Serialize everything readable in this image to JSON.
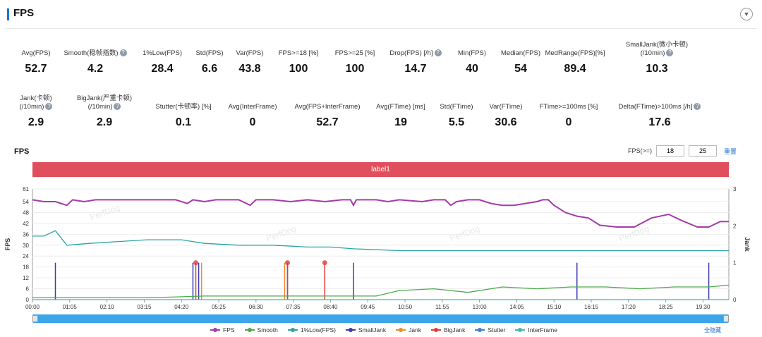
{
  "header": {
    "title": "FPS",
    "collapse_glyph": "▼"
  },
  "stats_row1": [
    {
      "label": "Avg(FPS)",
      "value": "52.7",
      "help": false
    },
    {
      "label": "Smooth(稳帧指数)",
      "value": "4.2",
      "help": true
    },
    {
      "label": "1%Low(FPS)",
      "value": "28.4",
      "help": false
    },
    {
      "label": "Std(FPS)",
      "value": "6.6",
      "help": false
    },
    {
      "label": "Var(FPS)",
      "value": "43.8",
      "help": false
    },
    {
      "label": "FPS>=18 [%]",
      "value": "100",
      "help": false
    },
    {
      "label": "FPS>=25 [%]",
      "value": "100",
      "help": false
    },
    {
      "label": "Drop(FPS) [/h]",
      "value": "14.7",
      "help": true
    },
    {
      "label": "Min(FPS)",
      "value": "40",
      "help": false
    },
    {
      "label": "Median(FPS)",
      "value": "54",
      "help": false
    },
    {
      "label": "MedRange(FPS)[%]",
      "value": "89.4",
      "help": false
    },
    {
      "label": "SmallJank(微小卡顿)",
      "label2": "(/10min)",
      "value": "10.3",
      "help": true
    }
  ],
  "stats_row2": [
    {
      "label": "Jank(卡顿)",
      "label2": "(/10min)",
      "value": "2.9",
      "help": true
    },
    {
      "label": "BigJank(严重卡顿)",
      "label2": "(/10min)",
      "value": "2.9",
      "help": true
    },
    {
      "label": "Stutter(卡顿率) [%]",
      "value": "0.1",
      "help": false
    },
    {
      "label": "Avg(InterFrame)",
      "value": "0",
      "help": false
    },
    {
      "label": "Avg(FPS+InterFrame)",
      "value": "52.7",
      "help": false
    },
    {
      "label": "Avg(FTime) [ms]",
      "value": "19",
      "help": false
    },
    {
      "label": "Std(FTime)",
      "value": "5.5",
      "help": false
    },
    {
      "label": "Var(FTime)",
      "value": "30.6",
      "help": false
    },
    {
      "label": "FTime>=100ms [%]",
      "value": "0",
      "help": false
    },
    {
      "label": "Delta(FTime)>100ms [/h]",
      "value": "17.6",
      "help": true
    }
  ],
  "chart": {
    "title": "FPS",
    "filter_label": "FPS(>=)",
    "filter_low": "18",
    "filter_high": "25",
    "filter_link": "重置",
    "label_band": "label1",
    "reset_link": "全隐藏"
  },
  "chart_data": {
    "type": "line",
    "ylabel": "FPS",
    "y2label": "Jank",
    "y_ticks": [
      "0",
      "6",
      "12",
      "18",
      "24",
      "30",
      "36",
      "42",
      "48",
      "54",
      "61"
    ],
    "y_range": [
      0,
      61
    ],
    "y2_ticks": [
      "0",
      "1",
      "2",
      "3"
    ],
    "y2_range": [
      0,
      3
    ],
    "x_ticks": [
      "00:00",
      "01:05",
      "02:10",
      "03:15",
      "04:20",
      "05:25",
      "06:30",
      "07:35",
      "08:40",
      "09:45",
      "10:50",
      "11:55",
      "13:00",
      "14:05",
      "15:10",
      "16:15",
      "17:20",
      "18:25",
      "19:30"
    ],
    "x_range_seconds": [
      0,
      1215
    ],
    "series": [
      {
        "name": "FPS",
        "color": "#a63ba8",
        "axis": "left",
        "points": [
          [
            0,
            55
          ],
          [
            20,
            54
          ],
          [
            40,
            54
          ],
          [
            60,
            52
          ],
          [
            70,
            55
          ],
          [
            90,
            54
          ],
          [
            110,
            55
          ],
          [
            150,
            55
          ],
          [
            200,
            55
          ],
          [
            250,
            55
          ],
          [
            270,
            53
          ],
          [
            280,
            55
          ],
          [
            300,
            54
          ],
          [
            320,
            55
          ],
          [
            360,
            55
          ],
          [
            380,
            52
          ],
          [
            390,
            55
          ],
          [
            420,
            55
          ],
          [
            450,
            54
          ],
          [
            480,
            55
          ],
          [
            510,
            54
          ],
          [
            540,
            55
          ],
          [
            555,
            55
          ],
          [
            560,
            52
          ],
          [
            565,
            55
          ],
          [
            600,
            55
          ],
          [
            620,
            54
          ],
          [
            640,
            55
          ],
          [
            680,
            54
          ],
          [
            700,
            55
          ],
          [
            720,
            55
          ],
          [
            730,
            52
          ],
          [
            740,
            54
          ],
          [
            760,
            55
          ],
          [
            780,
            55
          ],
          [
            800,
            53
          ],
          [
            820,
            52
          ],
          [
            840,
            52
          ],
          [
            860,
            53
          ],
          [
            880,
            54
          ],
          [
            890,
            55
          ],
          [
            900,
            55
          ],
          [
            910,
            52
          ],
          [
            930,
            48
          ],
          [
            950,
            46
          ],
          [
            970,
            45
          ],
          [
            990,
            41
          ],
          [
            1020,
            40
          ],
          [
            1050,
            40
          ],
          [
            1080,
            45
          ],
          [
            1110,
            47
          ],
          [
            1130,
            44
          ],
          [
            1160,
            40
          ],
          [
            1180,
            40
          ],
          [
            1200,
            43
          ],
          [
            1215,
            43
          ]
        ]
      },
      {
        "name": "Smooth",
        "color": "#4bab4b",
        "axis": "left",
        "points": [
          [
            0,
            1
          ],
          [
            100,
            1
          ],
          [
            200,
            1
          ],
          [
            300,
            2
          ],
          [
            400,
            2
          ],
          [
            500,
            2
          ],
          [
            600,
            2
          ],
          [
            640,
            5
          ],
          [
            700,
            6
          ],
          [
            760,
            4
          ],
          [
            820,
            7
          ],
          [
            880,
            6
          ],
          [
            940,
            7
          ],
          [
            1000,
            7
          ],
          [
            1060,
            6
          ],
          [
            1120,
            7
          ],
          [
            1180,
            7
          ],
          [
            1215,
            8
          ]
        ]
      },
      {
        "name": "1%Low(FPS)",
        "color": "#2ca4a4",
        "axis": "left",
        "points": [
          [
            0,
            35
          ],
          [
            10,
            35
          ],
          [
            20,
            35
          ],
          [
            40,
            38
          ],
          [
            60,
            30
          ],
          [
            100,
            31
          ],
          [
            150,
            32
          ],
          [
            200,
            33
          ],
          [
            260,
            33
          ],
          [
            300,
            31
          ],
          [
            360,
            30
          ],
          [
            420,
            30
          ],
          [
            480,
            29
          ],
          [
            520,
            29
          ],
          [
            560,
            28
          ],
          [
            640,
            27
          ],
          [
            720,
            27
          ],
          [
            800,
            27
          ],
          [
            900,
            27
          ],
          [
            1000,
            27
          ],
          [
            1100,
            27
          ],
          [
            1215,
            27
          ]
        ]
      },
      {
        "name": "InterFrame",
        "color": "#3cb8b8",
        "axis": "left",
        "points": [
          [
            0,
            0
          ],
          [
            1215,
            0
          ]
        ]
      }
    ],
    "spikes": [
      {
        "name": "SmallJank",
        "color": "#3b3bb0",
        "axis": "right",
        "x": [
          40,
          280,
          290,
          445,
          560,
          950,
          1180
        ],
        "value": 1
      },
      {
        "name": "Jank",
        "color": "#f08a2c",
        "axis": "right",
        "x": [
          295,
          440
        ],
        "value": 1
      },
      {
        "name": "BigJank",
        "color": "#e53935",
        "axis": "right",
        "x": [
          285,
          445,
          510
        ],
        "value": 1
      },
      {
        "name": "Stutter",
        "color": "#3c7fd6",
        "axis": "right",
        "x": [],
        "value": 0
      }
    ],
    "legend": [
      "FPS",
      "Smooth",
      "1%Low(FPS)",
      "SmallJank",
      "Jank",
      "BigJank",
      "Stutter",
      "InterFrame"
    ]
  },
  "colors": {
    "accent": "#1f6fd1",
    "band": "#e0505c",
    "scrollbar": "#3aa5e8"
  },
  "watermark": "PerfDog"
}
